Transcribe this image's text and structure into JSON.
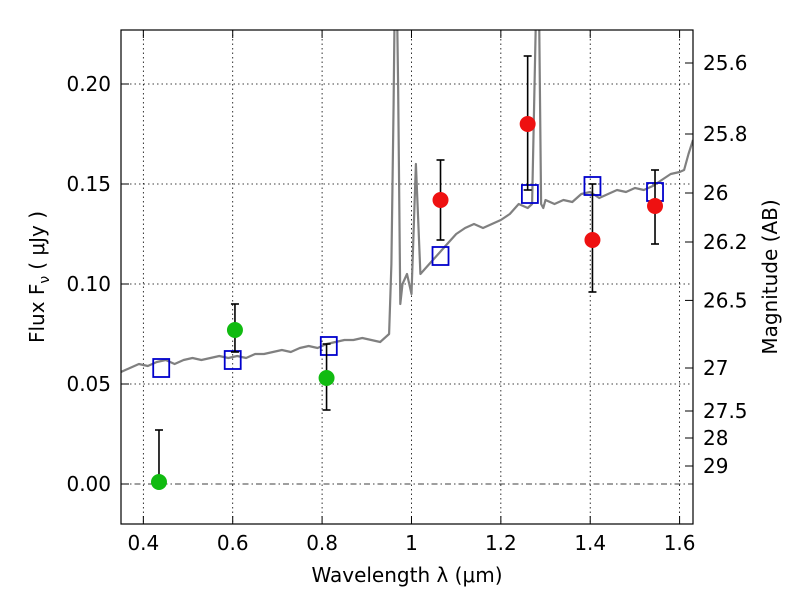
{
  "chart_data": {
    "type": "scatter",
    "xlabel": "Wavelength  λ (μm)",
    "ylabel": "Flux  F",
    "ylabel_sub": "ν",
    "ylabel_unit": "( μJy )",
    "y2label": "Magnitude (AB)",
    "xlim": [
      0.35,
      1.63
    ],
    "ylim": [
      -0.02,
      0.227
    ],
    "x_ticks": [
      0.4,
      0.6,
      0.8,
      1.0,
      1.2,
      1.4,
      1.6
    ],
    "x_tick_labels": [
      "0.4",
      "0.6",
      "0.8",
      "1",
      "1.2",
      "1.4",
      "1.6"
    ],
    "y_ticks": [
      0.0,
      0.05,
      0.1,
      0.15,
      0.2
    ],
    "y_tick_labels": [
      "0.00",
      "0.05",
      "0.10",
      "0.15",
      "0.20"
    ],
    "y2_ticks": [
      {
        "label": "25.6",
        "flux": 0.2105
      },
      {
        "label": "25.8",
        "flux": 0.175
      },
      {
        "label": "26",
        "flux": 0.1455
      },
      {
        "label": "26.2",
        "flux": 0.121
      },
      {
        "label": "26.5",
        "flux": 0.0918
      },
      {
        "label": "27",
        "flux": 0.058
      },
      {
        "label": "27.5",
        "flux": 0.0365
      },
      {
        "label": "28",
        "flux": 0.023
      },
      {
        "label": "29",
        "flux": 0.009
      }
    ],
    "grid": true,
    "series": [
      {
        "color": "#808080",
        "kind": "line",
        "x": [
          0.35,
          0.37,
          0.39,
          0.41,
          0.43,
          0.45,
          0.47,
          0.49,
          0.51,
          0.53,
          0.55,
          0.57,
          0.59,
          0.61,
          0.63,
          0.65,
          0.67,
          0.69,
          0.71,
          0.73,
          0.75,
          0.77,
          0.79,
          0.81,
          0.83,
          0.85,
          0.87,
          0.89,
          0.91,
          0.93,
          0.95,
          0.955,
          0.96,
          0.963,
          0.967,
          0.97,
          0.975,
          0.98,
          0.99,
          1.0,
          1.01,
          1.02,
          1.04,
          1.06,
          1.08,
          1.1,
          1.12,
          1.14,
          1.16,
          1.18,
          1.2,
          1.22,
          1.24,
          1.26,
          1.27,
          1.28,
          1.285,
          1.29,
          1.295,
          1.3,
          1.32,
          1.34,
          1.36,
          1.38,
          1.4,
          1.42,
          1.44,
          1.46,
          1.48,
          1.5,
          1.52,
          1.54,
          1.56,
          1.58,
          1.6,
          1.61,
          1.62,
          1.63
        ],
        "y": [
          0.056,
          0.058,
          0.06,
          0.059,
          0.061,
          0.062,
          0.06,
          0.062,
          0.063,
          0.062,
          0.063,
          0.064,
          0.063,
          0.064,
          0.063,
          0.065,
          0.065,
          0.066,
          0.067,
          0.066,
          0.068,
          0.069,
          0.068,
          0.07,
          0.071,
          0.072,
          0.072,
          0.073,
          0.072,
          0.071,
          0.075,
          0.11,
          0.19,
          0.25,
          0.25,
          0.2,
          0.09,
          0.1,
          0.105,
          0.095,
          0.16,
          0.105,
          0.11,
          0.115,
          0.12,
          0.125,
          0.128,
          0.13,
          0.128,
          0.13,
          0.132,
          0.135,
          0.14,
          0.138,
          0.14,
          0.25,
          0.25,
          0.14,
          0.138,
          0.142,
          0.14,
          0.142,
          0.141,
          0.145,
          0.146,
          0.143,
          0.145,
          0.147,
          0.146,
          0.148,
          0.147,
          0.149,
          0.152,
          0.155,
          0.156,
          0.157,
          0.165,
          0.172
        ]
      },
      {
        "color": "#0000cc",
        "kind": "open-square",
        "x": [
          0.44,
          0.6,
          0.815,
          1.065,
          1.265,
          1.405,
          1.545
        ],
        "y": [
          0.058,
          0.062,
          0.069,
          0.114,
          0.145,
          0.149,
          0.146
        ]
      },
      {
        "color": "#11bb11",
        "kind": "filled-circle",
        "x": [
          0.435,
          0.605,
          0.81
        ],
        "y": [
          0.001,
          0.077,
          0.053
        ],
        "err_low": [
          0.001,
          0.011,
          0.016
        ],
        "err_high": [
          0.026,
          0.013,
          0.017
        ]
      },
      {
        "color": "#ee1111",
        "kind": "filled-circle",
        "x": [
          1.065,
          1.26,
          1.405,
          1.545
        ],
        "y": [
          0.142,
          0.18,
          0.122,
          0.139
        ],
        "err_low": [
          0.02,
          0.033,
          0.026,
          0.019
        ],
        "err_high": [
          0.02,
          0.034,
          0.028,
          0.018
        ]
      }
    ]
  }
}
